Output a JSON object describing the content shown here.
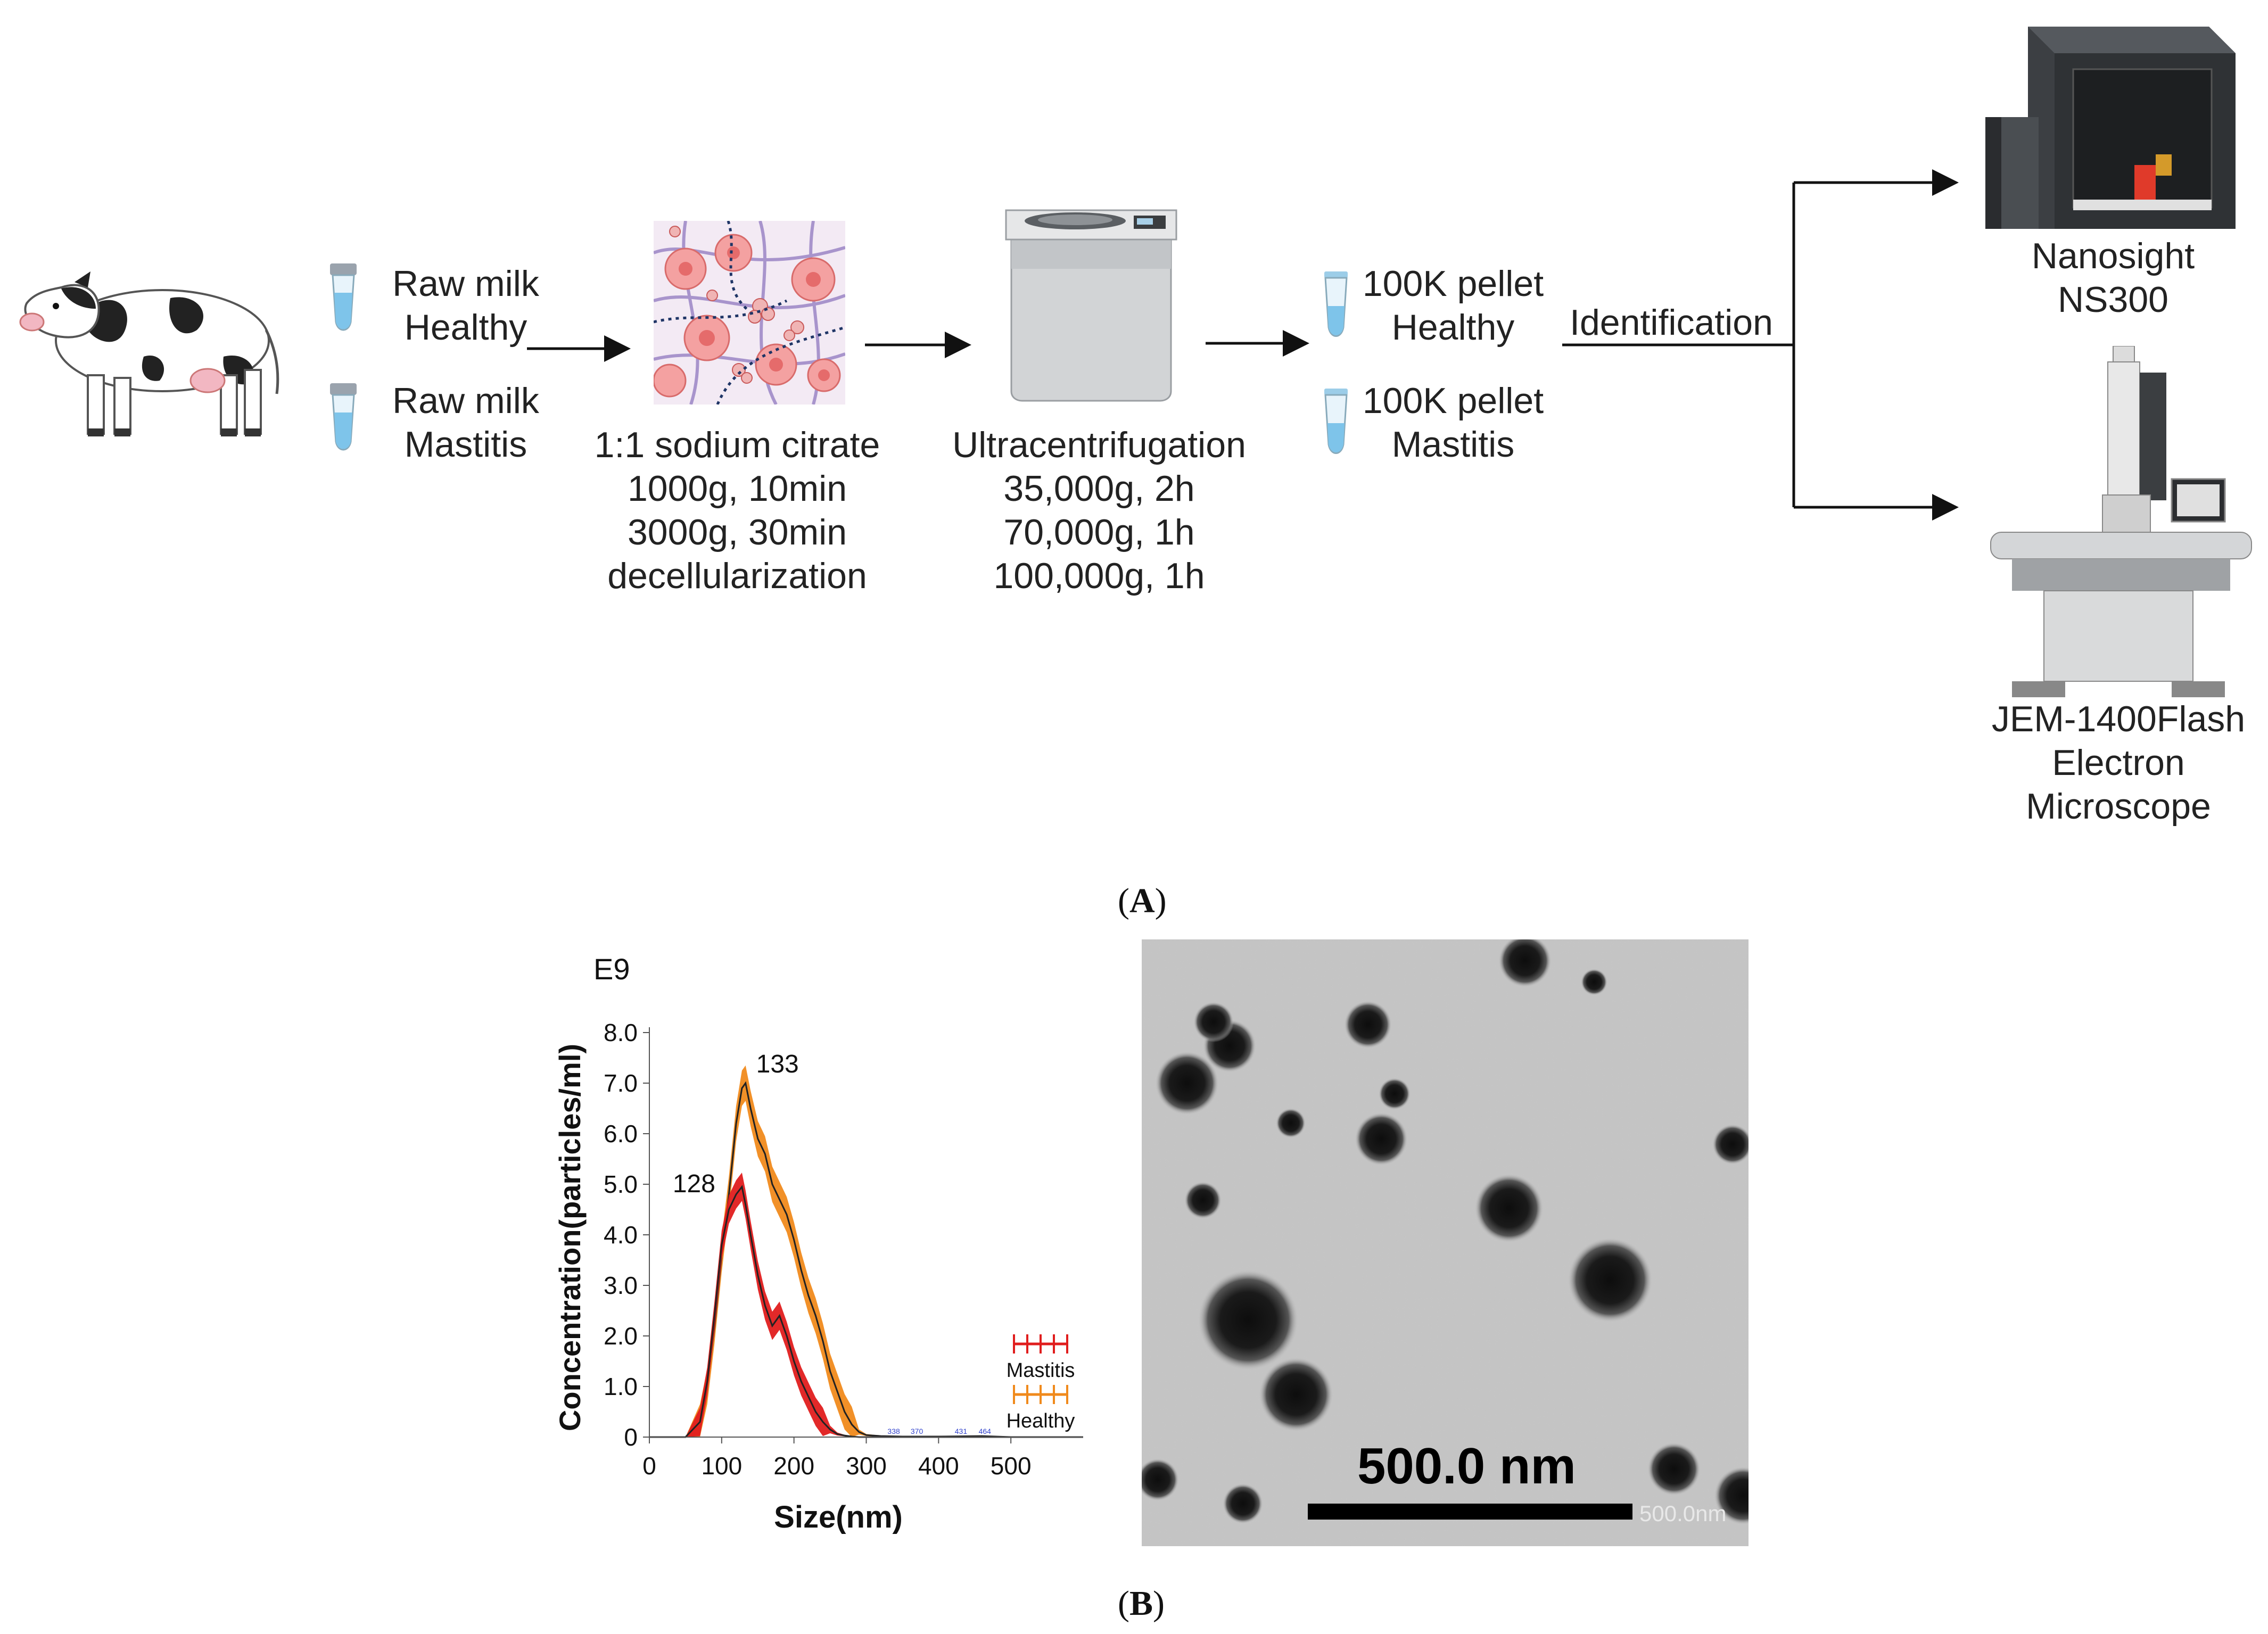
{
  "panel_a": {
    "label": "A",
    "samples": [
      {
        "lines": [
          "Raw milk",
          "Healthy"
        ]
      },
      {
        "lines": [
          "Raw milk",
          "Mastitis"
        ]
      }
    ],
    "step1": {
      "lines": [
        "1:1 sodium citrate",
        "1000g, 10min",
        "3000g, 30min",
        "decellularization"
      ]
    },
    "step2": {
      "lines": [
        "Ultracentrifugation",
        "35,000g, 2h",
        "70,000g, 1h",
        "100,000g, 1h"
      ]
    },
    "pellets": [
      {
        "lines": [
          "100K pellet",
          "Healthy"
        ]
      },
      {
        "lines": [
          "100K pellet",
          "Mastitis"
        ]
      }
    ],
    "identification": "Identification",
    "instruments": [
      {
        "lines": [
          "Nanosight",
          "NS300"
        ]
      },
      {
        "lines": [
          "JEM-1400Flash",
          "Electron",
          "Microscope"
        ]
      }
    ]
  },
  "panel_b": {
    "label": "B",
    "tem_scale_label": "500.0 nm",
    "tem_watermark": "500.0nm"
  },
  "chart_data": {
    "type": "area",
    "multiplier": "E9",
    "xlabel": "Size(nm)",
    "ylabel": "Concentration(particles/ml)",
    "xlim": [
      0,
      600
    ],
    "ylim": [
      0,
      8
    ],
    "x_ticks": [
      0,
      100,
      200,
      300,
      400,
      500
    ],
    "y_ticks": [
      "0",
      "1.0",
      "2.0",
      "3.0",
      "4.0",
      "5.0",
      "6.0",
      "7.0",
      "8.0"
    ],
    "x": [
      0,
      50,
      70,
      80,
      90,
      100,
      110,
      120,
      128,
      133,
      140,
      150,
      160,
      170,
      180,
      190,
      200,
      210,
      220,
      230,
      240,
      250,
      260,
      270,
      280,
      290,
      300,
      320,
      350,
      400,
      460,
      500,
      600
    ],
    "series": [
      {
        "name": "Healthy",
        "color": "#f08a1c",
        "values": [
          0,
          0,
          0.3,
          1.0,
          2.2,
          3.6,
          4.8,
          6.2,
          6.9,
          7.0,
          6.5,
          5.9,
          5.6,
          5.0,
          4.7,
          4.4,
          3.9,
          3.3,
          2.8,
          2.4,
          1.9,
          1.3,
          0.9,
          0.5,
          0.25,
          0.1,
          0.04,
          0.02,
          0.01,
          0.01,
          0.02,
          0.0,
          0.0
        ],
        "peak_label": "133"
      },
      {
        "name": "Mastitis",
        "color": "#e01d1d",
        "values": [
          0,
          0,
          0.3,
          1.1,
          2.4,
          3.8,
          4.5,
          4.8,
          4.95,
          4.6,
          4.0,
          3.2,
          2.6,
          2.2,
          2.4,
          2.0,
          1.5,
          1.1,
          0.8,
          0.5,
          0.3,
          0.15,
          0.06,
          0.03,
          0.01,
          0.0,
          0.0,
          0.0,
          0.0,
          0.0,
          0.0,
          0.0,
          0.0
        ],
        "peak_label": "128"
      }
    ],
    "minor_labels": [
      {
        "text": "338",
        "x": 338
      },
      {
        "text": "370",
        "x": 370
      },
      {
        "text": "431",
        "x": 431
      },
      {
        "text": "464",
        "x": 464
      }
    ],
    "legend": "right"
  }
}
